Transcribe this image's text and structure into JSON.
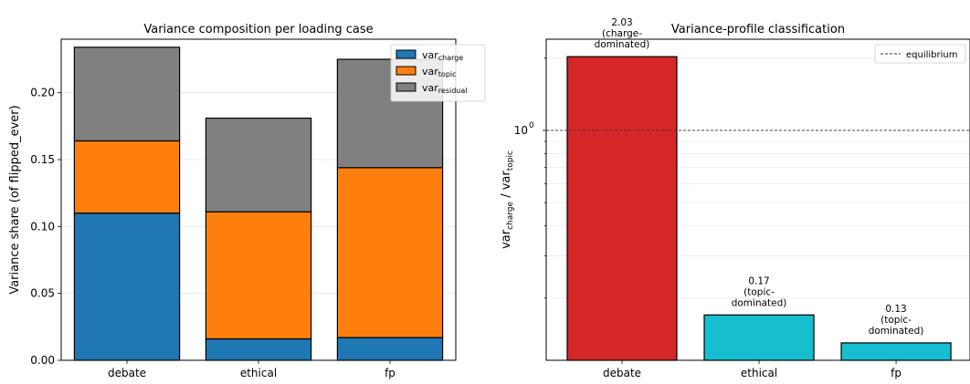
{
  "chart_data": [
    {
      "type": "bar",
      "stacked": true,
      "title": "Variance composition per loading case",
      "xlabel": "",
      "ylabel": "Variance share (of flipped_ever)",
      "categories": [
        "debate",
        "ethical",
        "fp"
      ],
      "ylim": [
        0,
        0.24
      ],
      "yticks": [
        0.0,
        0.05,
        0.1,
        0.15,
        0.2
      ],
      "ytick_labels": [
        "0.00",
        "0.05",
        "0.10",
        "0.15",
        "0.20"
      ],
      "grid": "y",
      "legend": "top-right",
      "series": [
        {
          "name": "var",
          "subscript": "charge",
          "color": "#1f77b4",
          "values": [
            0.11,
            0.016,
            0.017
          ]
        },
        {
          "name": "var",
          "subscript": "topic",
          "color": "#ff7f0e",
          "values": [
            0.054,
            0.095,
            0.127
          ]
        },
        {
          "name": "var",
          "subscript": "residual",
          "color": "#808080",
          "values": [
            0.07,
            0.07,
            0.081
          ]
        }
      ]
    },
    {
      "type": "bar",
      "title": "Variance-profile classification",
      "xlabel": "",
      "ylabel": {
        "main": "var",
        "sub1": "charge",
        "sep": " / var",
        "sub2": "topic"
      },
      "yscale": "log",
      "ylim": [
        0.11,
        2.4
      ],
      "ytick_label": {
        "base": "10",
        "exp": "0",
        "value": 1.0
      },
      "grid": "y",
      "legend": "top-right",
      "categories": [
        "debate",
        "ethical",
        "fp"
      ],
      "values": [
        2.03,
        0.17,
        0.13
      ],
      "colors": [
        "#d62728",
        "#17becf",
        "#17becf"
      ],
      "bar_labels": [
        [
          "2.03",
          "(charge-",
          "dominated)"
        ],
        [
          "0.17",
          "(topic-",
          "dominated)"
        ],
        [
          "0.13",
          "(topic-",
          "dominated)"
        ]
      ],
      "reference_line": {
        "name": "equilibrium",
        "value": 1.0
      }
    }
  ]
}
